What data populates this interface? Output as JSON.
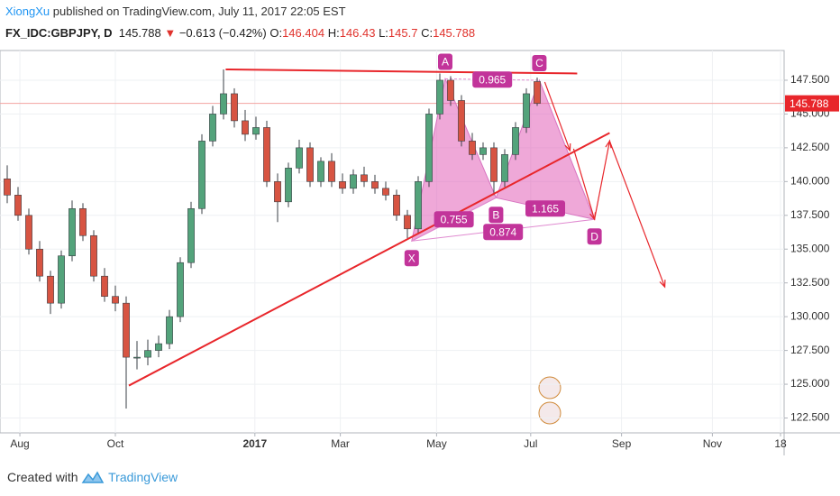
{
  "header": {
    "author": "XiongXu",
    "published": "published on TradingView.com, July 11, 2017 22:05 EST",
    "symbol": "FX_IDC:GBPJPY, D",
    "last": 145.788,
    "arrow": "▼",
    "change": "−0.613 (−0.42%)",
    "open_label": "O:",
    "open": 146.404,
    "high_label": "H:",
    "high": 146.43,
    "low_label": "L:",
    "low": 145.7,
    "close_label": "C:",
    "close": 145.788
  },
  "footer": {
    "created": "Created with",
    "brand": "TradingView"
  },
  "chart_data": {
    "type": "candlestick",
    "up_color": "#53a37b",
    "down_color": "#d75442",
    "categories": [
      null,
      null,
      null,
      null,
      null,
      null,
      null,
      null,
      null,
      null,
      null,
      null,
      null,
      null,
      null,
      null,
      null,
      null,
      null,
      null,
      null,
      null,
      null,
      null,
      null,
      null,
      null,
      null,
      null,
      null,
      null,
      null,
      null,
      null,
      null,
      null,
      null,
      null,
      null,
      null,
      null,
      null,
      null,
      null,
      null,
      null,
      null,
      null,
      null,
      null
    ],
    "open": [
      140.2,
      139.0,
      137.5,
      135.0,
      133.0,
      131.0,
      134.5,
      138.0,
      136.0,
      133.0,
      131.5,
      131.0,
      127.0,
      127.0,
      127.5,
      128.0,
      130.0,
      134.0,
      138.0,
      143.0,
      145.0,
      146.5,
      144.5,
      143.5,
      144.0,
      140.0,
      138.5,
      141.0,
      142.5,
      140.0,
      141.5,
      140.0,
      139.5,
      140.5,
      140.0,
      139.5,
      139.0,
      137.5,
      136.5,
      140.0,
      145.0,
      147.5,
      146.0,
      143.0,
      142.0,
      142.5,
      140.0,
      142.0,
      144.0,
      147.4
    ],
    "high": [
      141.2,
      139.6,
      138.0,
      135.6,
      133.4,
      134.9,
      138.6,
      138.4,
      136.4,
      133.6,
      132.3,
      131.5,
      128.2,
      128.3,
      128.6,
      130.5,
      134.4,
      138.5,
      143.5,
      145.6,
      148.3,
      146.9,
      145.3,
      144.8,
      144.5,
      140.6,
      141.4,
      143.1,
      142.9,
      141.8,
      142.1,
      140.6,
      140.9,
      141.1,
      140.5,
      140.0,
      139.4,
      137.9,
      140.4,
      145.4,
      148.0,
      147.8,
      146.4,
      143.6,
      142.9,
      142.9,
      142.4,
      144.4,
      146.9,
      147.7
    ],
    "low": [
      138.4,
      137.1,
      134.6,
      132.6,
      130.2,
      130.6,
      134.1,
      135.6,
      132.6,
      131.1,
      130.4,
      123.2,
      126.1,
      126.4,
      127.0,
      127.6,
      129.6,
      133.6,
      137.6,
      142.6,
      144.6,
      144.0,
      143.0,
      143.1,
      139.6,
      137.0,
      138.1,
      140.6,
      139.6,
      139.6,
      139.6,
      139.1,
      139.1,
      139.6,
      139.1,
      138.6,
      137.1,
      135.8,
      136.1,
      139.6,
      144.6,
      145.6,
      142.6,
      141.6,
      141.6,
      139.0,
      139.6,
      141.6,
      143.6,
      145.6
    ],
    "close": [
      139.0,
      137.5,
      135.0,
      133.0,
      131.0,
      134.5,
      138.0,
      136.0,
      133.0,
      131.5,
      131.0,
      127.0,
      127.0,
      127.5,
      128.0,
      130.0,
      134.0,
      138.0,
      143.0,
      145.0,
      146.5,
      144.5,
      143.5,
      144.0,
      140.0,
      138.5,
      141.0,
      142.5,
      140.0,
      141.5,
      140.0,
      139.5,
      140.5,
      140.0,
      139.5,
      139.0,
      137.5,
      136.5,
      140.0,
      145.0,
      147.5,
      146.0,
      143.0,
      142.0,
      142.5,
      140.0,
      142.0,
      144.0,
      146.5,
      145.788
    ],
    "xlim": [
      -0.667,
      71.833
    ],
    "xticks": [
      {
        "value": 1.17,
        "label": "Aug"
      },
      {
        "value": 10,
        "label": "Oct"
      },
      {
        "value": 22.9,
        "label": "2017"
      },
      {
        "value": 30.8,
        "label": "Mar"
      },
      {
        "value": 39.7,
        "label": "May"
      },
      {
        "value": 48.4,
        "label": "Jul"
      },
      {
        "value": 56.8,
        "label": "Sep"
      },
      {
        "value": 65.2,
        "label": "Nov"
      },
      {
        "value": 71.5,
        "label": "18"
      }
    ],
    "ylim": [
      121.4,
      149.7
    ],
    "yticks": [
      {
        "value": 122.5,
        "label": "122.500"
      },
      {
        "value": 125,
        "label": "125.000"
      },
      {
        "value": 127.5,
        "label": "127.500"
      },
      {
        "value": 130,
        "label": "130.000"
      },
      {
        "value": 132.5,
        "label": "132.500"
      },
      {
        "value": 135,
        "label": "135.000"
      },
      {
        "value": 137.5,
        "label": "137.500"
      },
      {
        "value": 140,
        "label": "140.000"
      },
      {
        "value": 142.5,
        "label": "142.500"
      },
      {
        "value": 145,
        "label": "145.000"
      },
      {
        "value": 147.5,
        "label": "147.500"
      }
    ],
    "grid": true,
    "last_price": 145.788,
    "trendlines": [
      {
        "x": [
          11.25,
          55.7
        ],
        "y": [
          124.9,
          143.6
        ]
      },
      {
        "x": [
          20.2,
          52.7
        ],
        "y": [
          148.3,
          148.0
        ]
      }
    ],
    "projection": {
      "x": [
        54.3,
        55.7,
        60.8
      ],
      "y": [
        137.2,
        143.0,
        132.2
      ]
    },
    "pattern": {
      "points": [
        {
          "label": "X",
          "x": 37.4,
          "y": 135.6
        },
        {
          "label": "A",
          "x": 40.5,
          "y": 147.6
        },
        {
          "label": "B",
          "x": 45.2,
          "y": 138.8
        },
        {
          "label": "C",
          "x": 49.2,
          "y": 147.5
        },
        {
          "label": "D",
          "x": 54.3,
          "y": 137.2
        }
      ],
      "ratios": [
        0.755,
        0.874,
        0.965,
        1.165
      ]
    }
  }
}
